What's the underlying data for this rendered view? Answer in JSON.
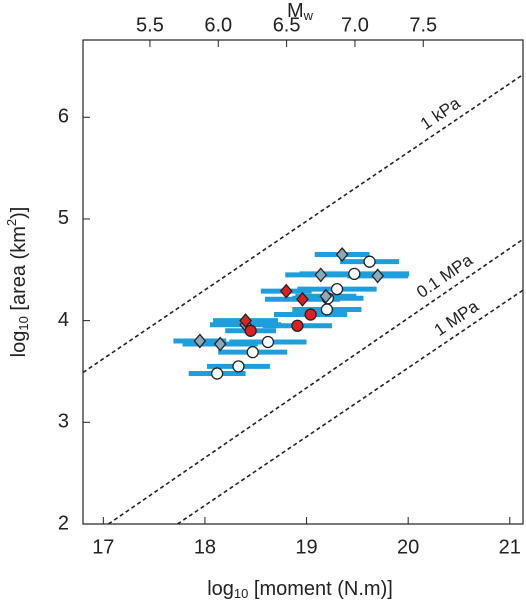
{
  "chart_data": {
    "type": "scatter",
    "xlabel": [
      {
        "text": "log"
      },
      {
        "text": "10",
        "sub": true
      },
      {
        "text": " [moment (N.m)]"
      }
    ],
    "ylabel": [
      {
        "text": "log"
      },
      {
        "text": "10",
        "sub": true
      },
      {
        "text": " [area (km"
      },
      {
        "text": "2",
        "sup": true
      },
      {
        "text": ")]"
      }
    ],
    "x2label": [
      {
        "text": "M"
      },
      {
        "text": "w",
        "sub": true
      }
    ],
    "xlim": [
      16.8,
      21.13
    ],
    "xticks": [
      17,
      18,
      19,
      20,
      21
    ],
    "ylim": [
      2,
      6.76
    ],
    "yticks": [
      2,
      3,
      4,
      5,
      6
    ],
    "x2lim": [
      5.01,
      8.23
    ],
    "x2ticks": [
      5.5,
      {
        "value": 6,
        "label": "6.0"
      },
      6.5,
      {
        "value": 7,
        "label": "7.0"
      },
      7.5
    ],
    "errorbar_color": "#1e9fdc",
    "lines": [
      {
        "label": "1 kPa",
        "x": [
          16.8,
          21.13
        ],
        "y": [
          3.49,
          6.42
        ]
      },
      {
        "label": "0.1 MPa",
        "x": [
          17.05,
          21.13
        ],
        "y": [
          2,
          4.8
        ]
      },
      {
        "label": "1 MPa",
        "x": [
          17.73,
          21.13
        ],
        "y": [
          2,
          4.3
        ]
      }
    ],
    "series": [
      {
        "marker": "circle",
        "color": "#ffffff",
        "x": [
          18.12,
          18.33,
          18.47,
          18.62,
          19.2,
          19.21,
          19.3,
          19.47,
          19.62
        ],
        "y": [
          3.48,
          3.55,
          3.69,
          3.79,
          4.11,
          4.22,
          4.31,
          4.46,
          4.58
        ],
        "xerr": [
          0.28,
          0.31,
          0.34,
          0.38,
          0.34,
          0.35,
          0.39,
          0.54,
          0.29
        ]
      },
      {
        "marker": "diamond",
        "color": "#8aa9bb",
        "x": [
          17.95,
          18.15,
          18.4,
          19.14,
          19.19,
          19.35,
          19.7
        ],
        "y": [
          3.8,
          3.77,
          3.96,
          4.45,
          4.24,
          4.65,
          4.44
        ],
        "xerr": [
          0.26,
          0.37,
          0.35,
          0.35,
          0.3,
          0.27,
          0.3
        ]
      },
      {
        "marker": "diamond",
        "color": "#e02020",
        "x": [
          18.4,
          18.8,
          18.96
        ],
        "y": [
          4.0,
          4.29,
          4.21
        ],
        "xerr": [
          0.32,
          0.25,
          0.37
        ]
      },
      {
        "marker": "circle",
        "color": "#e02020",
        "x": [
          18.45,
          18.91,
          19.04
        ],
        "y": [
          3.9,
          3.95,
          4.06
        ],
        "xerr": [
          0.25,
          0.34,
          0.36
        ]
      }
    ]
  }
}
